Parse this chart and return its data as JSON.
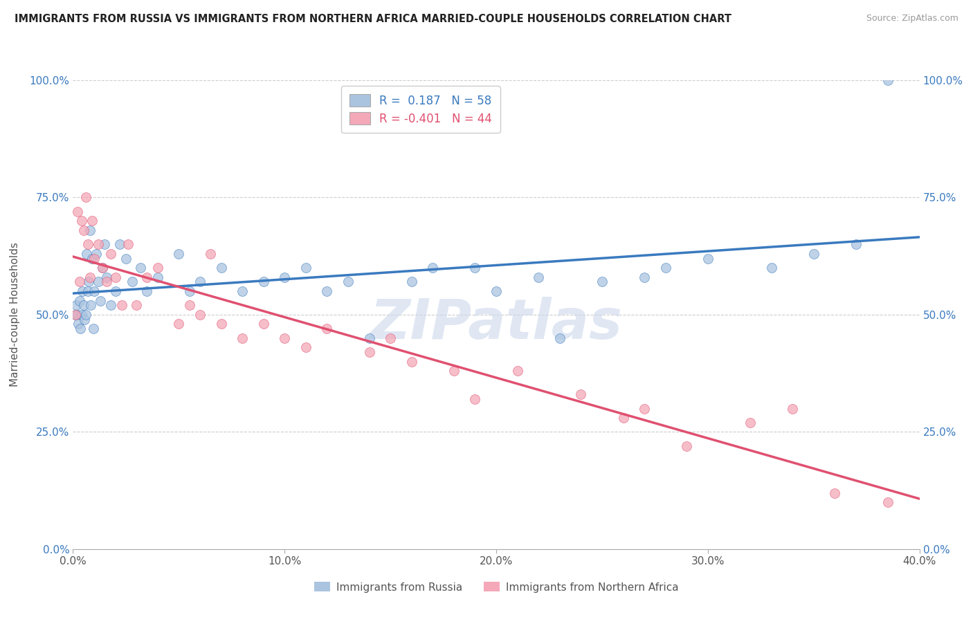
{
  "title": "IMMIGRANTS FROM RUSSIA VS IMMIGRANTS FROM NORTHERN AFRICA MARRIED-COUPLE HOUSEHOLDS CORRELATION CHART",
  "source": "Source: ZipAtlas.com",
  "ylabel": "Married-couple Households",
  "R_russia": 0.187,
  "N_russia": 58,
  "R_north_africa": -0.401,
  "N_north_africa": 44,
  "color_russia": "#aac4e0",
  "color_north_africa": "#f4a8b8",
  "line_color_russia": "#3a7abf",
  "line_color_north_africa": "#e05070",
  "watermark": "ZIPatlas",
  "watermark_color": "#ccd8ec",
  "russia_x": [
    0.1,
    0.15,
    0.2,
    0.25,
    0.3,
    0.35,
    0.4,
    0.45,
    0.5,
    0.55,
    0.6,
    0.65,
    0.7,
    0.75,
    0.8,
    0.85,
    0.9,
    0.95,
    1.0,
    1.1,
    1.2,
    1.3,
    1.4,
    1.5,
    1.6,
    1.8,
    2.0,
    2.2,
    2.5,
    2.8,
    3.2,
    3.5,
    4.0,
    5.0,
    5.5,
    6.0,
    7.0,
    8.0,
    9.0,
    10.0,
    11.0,
    12.0,
    13.0,
    14.0,
    16.0,
    17.0,
    19.0,
    20.0,
    22.0,
    23.0,
    25.0,
    27.0,
    28.0,
    30.0,
    33.0,
    35.0,
    37.0,
    38.5
  ],
  "russia_y": [
    50.0,
    52.0,
    50.0,
    48.0,
    53.0,
    47.0,
    50.0,
    55.0,
    52.0,
    49.0,
    50.0,
    63.0,
    55.0,
    57.0,
    68.0,
    52.0,
    62.0,
    47.0,
    55.0,
    63.0,
    57.0,
    53.0,
    60.0,
    65.0,
    58.0,
    52.0,
    55.0,
    65.0,
    62.0,
    57.0,
    60.0,
    55.0,
    58.0,
    63.0,
    55.0,
    57.0,
    60.0,
    55.0,
    57.0,
    58.0,
    60.0,
    55.0,
    57.0,
    45.0,
    57.0,
    60.0,
    60.0,
    55.0,
    58.0,
    45.0,
    57.0,
    58.0,
    60.0,
    62.0,
    60.0,
    63.0,
    65.0,
    100.0
  ],
  "north_africa_x": [
    0.1,
    0.2,
    0.3,
    0.4,
    0.5,
    0.6,
    0.7,
    0.8,
    0.9,
    1.0,
    1.2,
    1.4,
    1.6,
    1.8,
    2.0,
    2.3,
    2.6,
    3.0,
    3.5,
    4.0,
    5.0,
    5.5,
    6.0,
    6.5,
    7.0,
    8.0,
    9.0,
    10.0,
    11.0,
    12.0,
    14.0,
    15.0,
    16.0,
    18.0,
    19.0,
    21.0,
    24.0,
    26.0,
    27.0,
    29.0,
    32.0,
    34.0,
    36.0,
    38.5
  ],
  "north_africa_y": [
    50.0,
    72.0,
    57.0,
    70.0,
    68.0,
    75.0,
    65.0,
    58.0,
    70.0,
    62.0,
    65.0,
    60.0,
    57.0,
    63.0,
    58.0,
    52.0,
    65.0,
    52.0,
    58.0,
    60.0,
    48.0,
    52.0,
    50.0,
    63.0,
    48.0,
    45.0,
    48.0,
    45.0,
    43.0,
    47.0,
    42.0,
    45.0,
    40.0,
    38.0,
    32.0,
    38.0,
    33.0,
    28.0,
    30.0,
    22.0,
    27.0,
    30.0,
    12.0,
    10.0
  ],
  "xmin": 0.0,
  "xmax": 40.0,
  "ymin": 0.0,
  "ymax": 100.0,
  "yticks": [
    0.0,
    25.0,
    50.0,
    75.0,
    100.0
  ],
  "ytick_labels": [
    "0.0%",
    "25.0%",
    "50.0%",
    "75.0%",
    "100.0%"
  ],
  "xticks": [
    0.0,
    10.0,
    20.0,
    30.0,
    40.0
  ],
  "xtick_labels": [
    "0.0%",
    "10.0%",
    "20.0%",
    "30.0%",
    "40.0%"
  ],
  "legend_R_russia": "R =  0.187   N = 58",
  "legend_R_nafr": "R = -0.401   N = 44",
  "legend_bottom_1": "Immigrants from Russia",
  "legend_bottom_2": "Immigrants from Northern Africa"
}
